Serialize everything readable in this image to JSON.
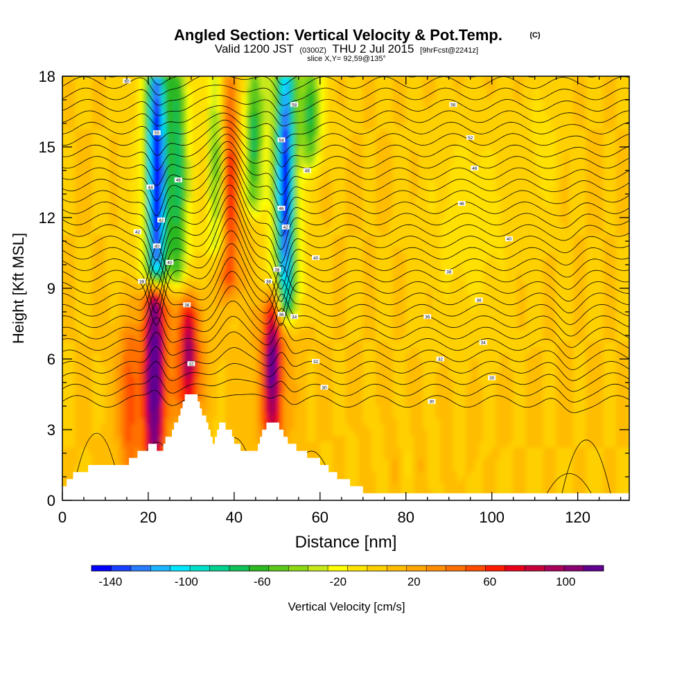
{
  "chart_data": {
    "type": "heatmap",
    "title": "Angled Section: Vertical Velocity & Pot.Temp.",
    "title_mark": "(C)",
    "subtitle": {
      "prefix": "Valid 1200 JST",
      "utc": "(0300Z)",
      "date": "THU 2 Jul 2015",
      "forecast": "[9hrFcst@2241z]"
    },
    "slice_label": "slice X,Y= 92,59@135°",
    "xlabel": "Distance [nm]",
    "ylabel": "Height [Kft MSL]",
    "xlim": [
      0,
      132
    ],
    "ylim": [
      0,
      18
    ],
    "x_ticks": [
      0,
      20,
      40,
      60,
      80,
      100,
      120
    ],
    "y_ticks": [
      0,
      3,
      6,
      9,
      12,
      15,
      18
    ],
    "colorbar": {
      "label": "Vertical Velocity [cm/s]",
      "min": -150,
      "max": 120,
      "step": 10,
      "tick_values": [
        -140,
        -100,
        -60,
        -20,
        20,
        60,
        100
      ],
      "colors": [
        "#0000ff",
        "#1a40ff",
        "#2a7cff",
        "#1cb4ff",
        "#00e6ff",
        "#00e0c8",
        "#00d18e",
        "#10c058",
        "#2cb820",
        "#5cc81a",
        "#8cd814",
        "#c8e81a",
        "#ffff00",
        "#ffe400",
        "#ffd000",
        "#ffbc00",
        "#ffa600",
        "#ff8e00",
        "#ff7000",
        "#ff4c00",
        "#ff1a00",
        "#e8001a",
        "#c8003a",
        "#a8005a",
        "#880070",
        "#600090"
      ]
    },
    "updrafts": [
      {
        "x": 21.5,
        "z_bottom": 2.5,
        "z_top": 8.3,
        "w": 110
      },
      {
        "x": 29.5,
        "z_bottom": 4.5,
        "z_top": 7.7,
        "w": 75
      },
      {
        "x": 49.0,
        "z_bottom": 3.3,
        "z_top": 8.0,
        "w": 90
      },
      {
        "x": 15.5,
        "z_bottom": 2.0,
        "z_top": 6.5,
        "w": 35
      },
      {
        "x": 39.0,
        "z_bottom": 9.5,
        "z_top": 18.0,
        "w": 55
      }
    ],
    "downdrafts": [
      {
        "x": 22.0,
        "z_bottom": 10.0,
        "z_top": 18.0,
        "w": -135
      },
      {
        "x": 52.0,
        "z_bottom": 8.5,
        "z_top": 18.0,
        "w": -120
      },
      {
        "x": 27.0,
        "z_bottom": 10.0,
        "z_top": 18.0,
        "w": -55
      },
      {
        "x": 36.0,
        "z_bottom": 11.0,
        "z_top": 18.0,
        "w": -50
      },
      {
        "x": 44.5,
        "z_bottom": 13.0,
        "z_top": 18.0,
        "w": -60
      },
      {
        "x": 58.0,
        "z_bottom": 15.0,
        "z_top": 18.0,
        "w": -55
      }
    ],
    "terrain_profile": [
      [
        0,
        0.5
      ],
      [
        1,
        0.9
      ],
      [
        3,
        1.1
      ],
      [
        5,
        1.2
      ],
      [
        6,
        1.4
      ],
      [
        11,
        1.5
      ],
      [
        13,
        1.4
      ],
      [
        15,
        1.6
      ],
      [
        16,
        1.7
      ],
      [
        17,
        1.9
      ],
      [
        18,
        2.1
      ],
      [
        19,
        2.2
      ],
      [
        21,
        2.3
      ],
      [
        23,
        2.1
      ],
      [
        24,
        2.6
      ],
      [
        25,
        2.8
      ],
      [
        27,
        3.5
      ],
      [
        28,
        4.3
      ],
      [
        29,
        4.6
      ],
      [
        31,
        4.5
      ],
      [
        32,
        3.9
      ],
      [
        33,
        3.5
      ],
      [
        34,
        2.9
      ],
      [
        35,
        2.5
      ],
      [
        36,
        3.0
      ],
      [
        37,
        3.3
      ],
      [
        39,
        2.9
      ],
      [
        40,
        2.5
      ],
      [
        42,
        2.0
      ],
      [
        45,
        2.2
      ],
      [
        46,
        2.8
      ],
      [
        47,
        3.1
      ],
      [
        48,
        3.3
      ],
      [
        50,
        3.2
      ],
      [
        51,
        2.9
      ],
      [
        52,
        2.6
      ],
      [
        54,
        2.3
      ],
      [
        56,
        2.0
      ],
      [
        58,
        1.8
      ],
      [
        60,
        1.6
      ],
      [
        62,
        1.3
      ],
      [
        64,
        1.0
      ],
      [
        66,
        0.8
      ],
      [
        68,
        0.6
      ],
      [
        70,
        0.4
      ],
      [
        72,
        0.3
      ],
      [
        132,
        0.3
      ]
    ],
    "isentropes": [
      30,
      31,
      32,
      33,
      34,
      35,
      36,
      37,
      38,
      39,
      40,
      41,
      42,
      43,
      44,
      45,
      46,
      47,
      48,
      49,
      50,
      51,
      52,
      53,
      54,
      55,
      56,
      57,
      58,
      59,
      60
    ],
    "isentrope_labels": [
      {
        "text": "60",
        "x": 15.0,
        "z": 17.8
      },
      {
        "text": "58",
        "x": 54.0,
        "z": 16.8
      },
      {
        "text": "56",
        "x": 91.0,
        "z": 16.8
      },
      {
        "text": "55",
        "x": 22.0,
        "z": 15.6
      },
      {
        "text": "54",
        "x": 51.0,
        "z": 15.3
      },
      {
        "text": "52",
        "x": 95.0,
        "z": 15.4
      },
      {
        "text": "48",
        "x": 57.0,
        "z": 14.0
      },
      {
        "text": "48",
        "x": 96.0,
        "z": 14.1
      },
      {
        "text": "46",
        "x": 27.0,
        "z": 13.6
      },
      {
        "text": "44",
        "x": 20.5,
        "z": 13.3
      },
      {
        "text": "46",
        "x": 51.0,
        "z": 12.4
      },
      {
        "text": "46",
        "x": 93.0,
        "z": 12.6
      },
      {
        "text": "42",
        "x": 23.0,
        "z": 11.9
      },
      {
        "text": "42",
        "x": 17.5,
        "z": 11.4
      },
      {
        "text": "42",
        "x": 52.0,
        "z": 11.6
      },
      {
        "text": "40",
        "x": 104.0,
        "z": 11.1
      },
      {
        "text": "40",
        "x": 22.0,
        "z": 10.8
      },
      {
        "text": "40",
        "x": 25.0,
        "z": 10.1
      },
      {
        "text": "38",
        "x": 50.0,
        "z": 9.8
      },
      {
        "text": "40",
        "x": 59.0,
        "z": 10.3
      },
      {
        "text": "38",
        "x": 90.0,
        "z": 9.7
      },
      {
        "text": "38",
        "x": 18.5,
        "z": 9.3
      },
      {
        "text": "38",
        "x": 48.0,
        "z": 9.3
      },
      {
        "text": "36",
        "x": 97.0,
        "z": 8.5
      },
      {
        "text": "36",
        "x": 29.0,
        "z": 8.3
      },
      {
        "text": "36",
        "x": 51.0,
        "z": 7.9
      },
      {
        "text": "34",
        "x": 54.0,
        "z": 7.8
      },
      {
        "text": "36",
        "x": 85.0,
        "z": 7.8
      },
      {
        "text": "34",
        "x": 98.0,
        "z": 6.7
      },
      {
        "text": "32",
        "x": 88.0,
        "z": 6.0
      },
      {
        "text": "32",
        "x": 30.0,
        "z": 5.8
      },
      {
        "text": "32",
        "x": 59.0,
        "z": 5.9
      },
      {
        "text": "30",
        "x": 100.0,
        "z": 5.2
      },
      {
        "text": "30",
        "x": 61.0,
        "z": 4.8
      },
      {
        "text": "30",
        "x": 86.0,
        "z": 4.2
      }
    ]
  }
}
